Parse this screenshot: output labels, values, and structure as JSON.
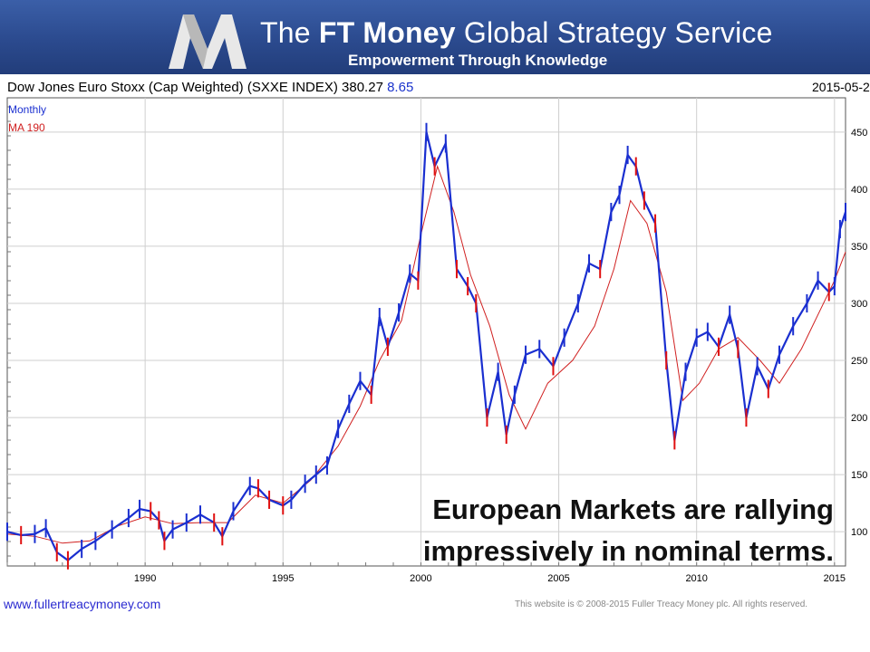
{
  "banner": {
    "title_prefix": "The ",
    "title_bold": "FT Money",
    "title_suffix": " Global Strategy Service",
    "subtitle": "Empowerment Through Knowledge"
  },
  "chart_data": {
    "type": "line",
    "title_text": "Dow Jones Euro Stoxx (Cap Weighted)  (SXXE INDEX) 380.27",
    "title_change": "8.65",
    "date": "2015-05-2",
    "legend": [
      "Monthly",
      "MA 190"
    ],
    "x_ticks": [
      "1990",
      "1995",
      "2000",
      "2005",
      "2010",
      "2015"
    ],
    "y_ticks": [
      "100",
      "150",
      "200",
      "250",
      "300",
      "350",
      "400",
      "450"
    ],
    "xlim": [
      1985.0,
      2015.4
    ],
    "ylim": [
      70,
      480
    ],
    "grid": true,
    "series": [
      {
        "name": "Monthly",
        "color": "#1a2fd0",
        "x": [
          1985.0,
          1985.5,
          1986.0,
          1986.4,
          1986.8,
          1987.2,
          1987.7,
          1988.2,
          1988.8,
          1989.4,
          1989.8,
          1990.2,
          1990.5,
          1990.7,
          1991.0,
          1991.5,
          1992.0,
          1992.5,
          1992.8,
          1993.2,
          1993.8,
          1994.1,
          1994.5,
          1995.0,
          1995.3,
          1995.8,
          1996.2,
          1996.6,
          1997.0,
          1997.4,
          1997.8,
          1998.2,
          1998.5,
          1998.8,
          1999.2,
          1999.6,
          1999.9,
          2000.2,
          2000.5,
          2000.9,
          2001.3,
          2001.7,
          2002.0,
          2002.4,
          2002.8,
          2003.1,
          2003.4,
          2003.8,
          2004.3,
          2004.8,
          2005.2,
          2005.7,
          2006.1,
          2006.5,
          2006.9,
          2007.2,
          2007.5,
          2007.8,
          2008.1,
          2008.5,
          2008.9,
          2009.2,
          2009.6,
          2010.0,
          2010.4,
          2010.8,
          2011.2,
          2011.5,
          2011.8,
          2012.2,
          2012.6,
          2013.0,
          2013.5,
          2014.0,
          2014.4,
          2014.8,
          2015.0,
          2015.2,
          2015.4
        ],
        "values": [
          100,
          97,
          98,
          103,
          82,
          75,
          85,
          92,
          102,
          112,
          120,
          118,
          110,
          92,
          102,
          108,
          115,
          108,
          96,
          118,
          140,
          138,
          128,
          123,
          128,
          142,
          150,
          158,
          190,
          212,
          232,
          220,
          288,
          262,
          292,
          326,
          320,
          450,
          420,
          440,
          330,
          315,
          300,
          200,
          240,
          185,
          220,
          255,
          260,
          245,
          270,
          300,
          335,
          330,
          380,
          395,
          430,
          420,
          390,
          370,
          250,
          180,
          240,
          270,
          275,
          262,
          290,
          260,
          200,
          245,
          225,
          255,
          280,
          300,
          320,
          310,
          315,
          365,
          380
        ]
      },
      {
        "name": "MA 190",
        "color": "#d02020",
        "x": [
          1985.0,
          1986.0,
          1987.0,
          1988.0,
          1989.0,
          1990.0,
          1991.0,
          1992.0,
          1993.0,
          1994.0,
          1995.0,
          1996.0,
          1997.0,
          1997.8,
          1998.5,
          1999.3,
          2000.0,
          2000.6,
          2001.2,
          2001.8,
          2002.5,
          2003.2,
          2003.8,
          2004.6,
          2005.5,
          2006.3,
          2007.0,
          2007.6,
          2008.2,
          2008.9,
          2009.5,
          2010.1,
          2010.8,
          2011.5,
          2012.3,
          2013.0,
          2013.8,
          2014.5,
          2015.0,
          2015.4
        ],
        "values": [
          98,
          96,
          90,
          92,
          105,
          113,
          107,
          108,
          108,
          132,
          125,
          145,
          175,
          210,
          250,
          285,
          360,
          420,
          380,
          325,
          280,
          220,
          190,
          230,
          250,
          280,
          330,
          390,
          370,
          310,
          215,
          230,
          260,
          270,
          250,
          230,
          260,
          295,
          320,
          345
        ]
      }
    ]
  },
  "annotation": {
    "line1": "European Markets are rallying",
    "line2": "impressively in nominal terms."
  },
  "footer": {
    "url": "www.fullertreacymoney.com",
    "copyright": "This website is © 2008-2015 Fuller Treacy Money plc. All rights reserved."
  }
}
